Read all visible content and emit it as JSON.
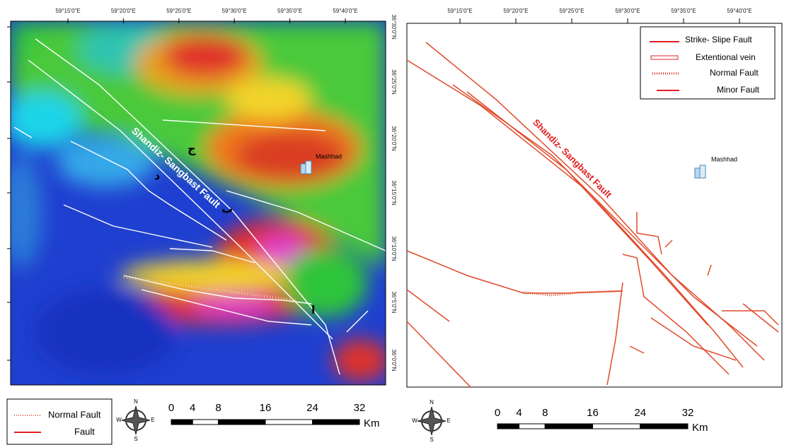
{
  "left_map": {
    "lon_labels": [
      "59°15'0\"E",
      "59°20'0\"E",
      "59°25'0\"E",
      "59°30'0\"E",
      "59°35'0\"E",
      "59°40'0\"E"
    ],
    "lat_labels": [
      "36°30'0\"N",
      "36°25'0\"N",
      "36°20'0\"N",
      "36°15'0\"N",
      "36°10'0\"N",
      "36°5'0\"N",
      "36°0'0\"N"
    ],
    "fault_label": "Shandiz- Sangbast Fault",
    "city": "Mashhad",
    "letters": [
      "ج",
      "د",
      "ب",
      "ا"
    ],
    "legend": [
      "Normal Fault",
      "Fault"
    ],
    "scale": {
      "ticks": [
        "0",
        "4",
        "8",
        "16",
        "24",
        "32"
      ],
      "unit": "Km"
    },
    "compass": {
      "n": "N",
      "s": "S",
      "e": "E",
      "w": "W"
    }
  },
  "right_map": {
    "lon_labels": [
      "59°15'0\"E",
      "59°20'0\"E",
      "59°25'0\"E",
      "59°30'0\"E",
      "59°35'0\"E",
      "59°40'0\"E"
    ],
    "fault_label": "Shandiz- Sangbast Fault",
    "city": "Mashhad",
    "legend": [
      "Strike- Slipe Fault",
      "Extentional vein",
      "Normal Fault",
      "Minor Fault"
    ],
    "scale": {
      "ticks": [
        "0",
        "4",
        "8",
        "16",
        "24",
        "32"
      ],
      "unit": "Km"
    },
    "compass": {
      "n": "N",
      "s": "S",
      "e": "E",
      "w": "W"
    }
  }
}
